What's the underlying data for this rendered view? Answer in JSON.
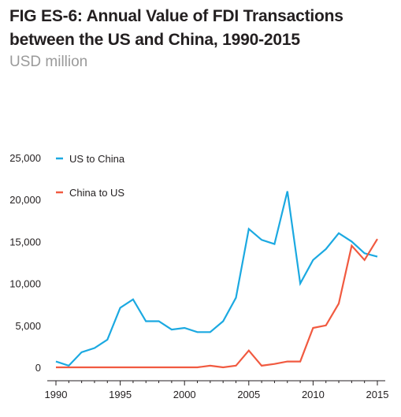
{
  "header": {
    "title_line1": "FIG ES-6: Annual Value of FDI Transactions",
    "title_line2": "between the US and China, 1990-2015",
    "subtitle": "USD million"
  },
  "chart_data": {
    "type": "line",
    "title": "FIG ES-6: Annual Value of FDI Transactions between the US and China, 1990-2015",
    "subtitle": "USD million",
    "xlabel": "",
    "ylabel": "",
    "x": [
      1990,
      1991,
      1992,
      1993,
      1994,
      1995,
      1996,
      1997,
      1998,
      1999,
      2000,
      2001,
      2002,
      2003,
      2004,
      2005,
      2006,
      2007,
      2008,
      2009,
      2010,
      2011,
      2012,
      2013,
      2014,
      2015
    ],
    "xlim": [
      1990,
      2015
    ],
    "ylim": [
      0,
      25000
    ],
    "x_ticks": [
      "1990",
      "1995",
      "2000",
      "2005",
      "2010",
      "2015"
    ],
    "x_tick_values": [
      1990,
      1995,
      2000,
      2005,
      2010,
      2015
    ],
    "y_ticks": [
      "0",
      "5,000",
      "10,000",
      "15,000",
      "20,000",
      "25,000"
    ],
    "y_tick_values": [
      0,
      5000,
      10000,
      15000,
      20000,
      25000
    ],
    "grid": false,
    "legend_position": "top-left",
    "series": [
      {
        "name": "US to China",
        "color": "#1ba9e1",
        "values": [
          700,
          200,
          1800,
          2300,
          3300,
          7100,
          8100,
          5500,
          5500,
          4500,
          4700,
          4200,
          4200,
          5500,
          8300,
          16500,
          15200,
          14700,
          21000,
          10000,
          12800,
          14100,
          16000,
          15000,
          13600,
          13200
        ]
      },
      {
        "name": "China to US",
        "color": "#f15a40",
        "values": [
          0,
          0,
          0,
          0,
          0,
          0,
          0,
          0,
          0,
          0,
          0,
          0,
          200,
          0,
          200,
          2000,
          200,
          400,
          700,
          700,
          4700,
          5000,
          7600,
          14500,
          12800,
          15300
        ]
      }
    ]
  }
}
